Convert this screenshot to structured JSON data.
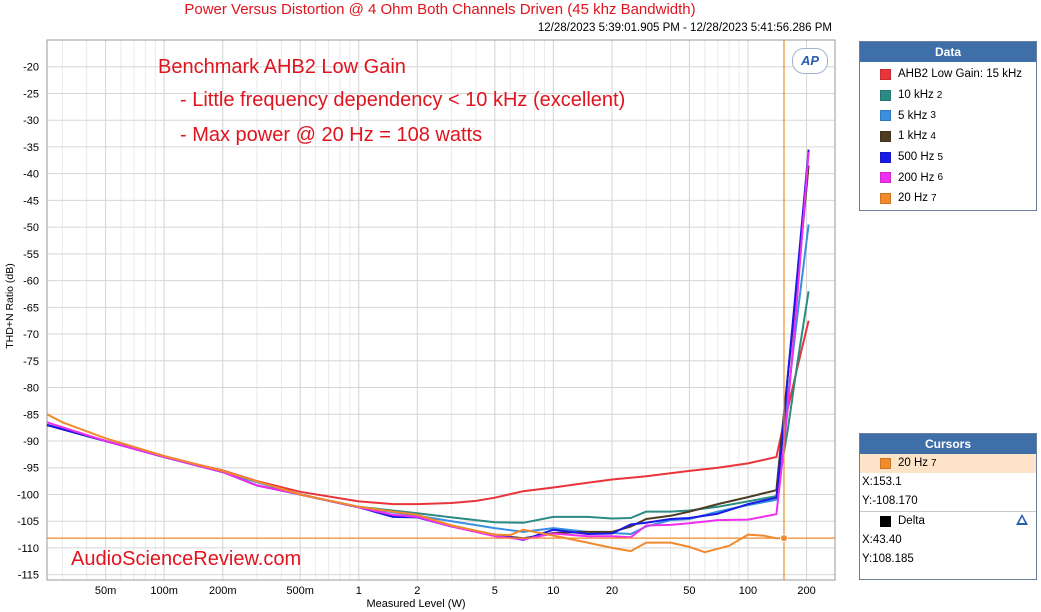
{
  "header": {
    "title": "Power Versus Distortion @ 4 Ohm Both Channels Driven (45 khz Bandwidth)",
    "date_range": "12/28/2023 5:39:01.905 PM - 12/28/2023 5:41:56.286 PM"
  },
  "logo_text": "AP",
  "annotations": {
    "line1": "Benchmark AHB2 Low Gain",
    "line2": "- Little frequency dependency < 10 kHz (excellent)",
    "line3": "- Max power @ 20 Hz = 108 watts"
  },
  "watermark": "AudioScienceReview.com",
  "data_panel": {
    "title": "Data",
    "items": [
      {
        "label": "AHB2 Low Gain: 15 kHz",
        "sub": "",
        "color": "#e8343a"
      },
      {
        "label": "10 kHz",
        "sub": "2",
        "color": "#2a8c82"
      },
      {
        "label": "5 kHz",
        "sub": "3",
        "color": "#3a8fe0"
      },
      {
        "label": "1 kHz",
        "sub": "4",
        "color": "#4d3b22"
      },
      {
        "label": "500 Hz",
        "sub": "5",
        "color": "#1a1ae6"
      },
      {
        "label": "200 Hz",
        "sub": "6",
        "color": "#f030f0"
      },
      {
        "label": "20 Hz",
        "sub": "7",
        "color": "#f08a2c"
      }
    ]
  },
  "cursors_panel": {
    "title": "Cursors",
    "selected": {
      "label": "20 Hz",
      "sub": "7",
      "color": "#f08a2c"
    },
    "x": "X:153.1",
    "y": "Y:-108.170",
    "delta_label": "Delta",
    "delta_x": "X:43.40",
    "delta_y": "Y:108.185"
  },
  "chart_data": {
    "type": "line",
    "title": "Power Versus Distortion @ 4 Ohm Both Channels Driven (45 khz Bandwidth)",
    "xlabel": "Measured Level (W)",
    "ylabel": "THD+N Ratio (dB)",
    "x_scale": "log",
    "xlim": [
      0.025,
      280
    ],
    "ylim": [
      -116,
      -15
    ],
    "x_ticks": [
      {
        "v": 0.05,
        "label": "50m"
      },
      {
        "v": 0.1,
        "label": "100m"
      },
      {
        "v": 0.2,
        "label": "200m"
      },
      {
        "v": 0.5,
        "label": "500m"
      },
      {
        "v": 1,
        "label": "1"
      },
      {
        "v": 2,
        "label": "2"
      },
      {
        "v": 5,
        "label": "5"
      },
      {
        "v": 10,
        "label": "10"
      },
      {
        "v": 20,
        "label": "20"
      },
      {
        "v": 50,
        "label": "50"
      },
      {
        "v": 100,
        "label": "100"
      },
      {
        "v": 200,
        "label": "200"
      }
    ],
    "y_ticks": [
      -20,
      -25,
      -30,
      -35,
      -40,
      -45,
      -50,
      -55,
      -60,
      -65,
      -70,
      -75,
      -80,
      -85,
      -90,
      -95,
      -100,
      -105,
      -110,
      -115
    ],
    "grid": true,
    "legend_position": "right",
    "cursor": {
      "x": 153.1,
      "y": -108.17,
      "color": "#f08a2c"
    },
    "series": [
      {
        "name": "AHB2 Low Gain: 15 kHz",
        "color": "#e8343a",
        "points": [
          [
            0.025,
            -87
          ],
          [
            0.05,
            -90
          ],
          [
            0.1,
            -93
          ],
          [
            0.2,
            -95.5
          ],
          [
            0.3,
            -97.5
          ],
          [
            0.5,
            -99.5
          ],
          [
            1,
            -101.3
          ],
          [
            1.5,
            -101.8
          ],
          [
            2,
            -101.8
          ],
          [
            3,
            -101.6
          ],
          [
            4,
            -101.2
          ],
          [
            5,
            -100.6
          ],
          [
            7,
            -99.4
          ],
          [
            10,
            -98.7
          ],
          [
            15,
            -97.8
          ],
          [
            20,
            -97.2
          ],
          [
            30,
            -96.6
          ],
          [
            50,
            -95.6
          ],
          [
            70,
            -95.0
          ],
          [
            100,
            -94.2
          ],
          [
            140,
            -93.0
          ],
          [
            150,
            -88
          ],
          [
            160,
            -84
          ],
          [
            180,
            -76
          ],
          [
            205,
            -67.5
          ]
        ]
      },
      {
        "name": "10 kHz",
        "color": "#2a8c82",
        "points": [
          [
            0.025,
            -87
          ],
          [
            0.05,
            -90
          ],
          [
            0.1,
            -93
          ],
          [
            0.2,
            -95.8
          ],
          [
            0.5,
            -100
          ],
          [
            1,
            -102.3
          ],
          [
            2,
            -103.5
          ],
          [
            3,
            -104.3
          ],
          [
            5,
            -105.2
          ],
          [
            7,
            -105.3
          ],
          [
            10,
            -104.2
          ],
          [
            15,
            -104.2
          ],
          [
            20,
            -104.5
          ],
          [
            25,
            -104.4
          ],
          [
            30,
            -103.2
          ],
          [
            40,
            -103.2
          ],
          [
            50,
            -103.0
          ],
          [
            70,
            -102.3
          ],
          [
            100,
            -101.3
          ],
          [
            140,
            -100.3
          ],
          [
            150,
            -94
          ],
          [
            160,
            -88
          ],
          [
            180,
            -75
          ],
          [
            205,
            -62
          ]
        ]
      },
      {
        "name": "5 kHz",
        "color": "#3a8fe0",
        "points": [
          [
            0.025,
            -87
          ],
          [
            0.05,
            -90
          ],
          [
            0.1,
            -93
          ],
          [
            0.2,
            -95.8
          ],
          [
            0.5,
            -100
          ],
          [
            1,
            -102.4
          ],
          [
            2,
            -104
          ],
          [
            3,
            -105
          ],
          [
            5,
            -106.3
          ],
          [
            7,
            -107
          ],
          [
            10,
            -106.3
          ],
          [
            15,
            -107
          ],
          [
            20,
            -107.2
          ],
          [
            25,
            -107.4
          ],
          [
            30,
            -106
          ],
          [
            40,
            -104.8
          ],
          [
            50,
            -104.6
          ],
          [
            70,
            -103.2
          ],
          [
            100,
            -102
          ],
          [
            140,
            -101
          ],
          [
            150,
            -90
          ],
          [
            160,
            -82
          ],
          [
            180,
            -66
          ],
          [
            205,
            -49.5
          ]
        ]
      },
      {
        "name": "1 kHz",
        "color": "#4d3b22",
        "points": [
          [
            0.025,
            -87
          ],
          [
            0.05,
            -90
          ],
          [
            0.1,
            -93
          ],
          [
            0.2,
            -95.8
          ],
          [
            0.3,
            -98.3
          ],
          [
            0.5,
            -100
          ],
          [
            1,
            -102.4
          ],
          [
            1.5,
            -104
          ],
          [
            2,
            -104.2
          ],
          [
            3,
            -105.8
          ],
          [
            5,
            -107.6
          ],
          [
            7,
            -108.2
          ],
          [
            10,
            -107.2
          ],
          [
            15,
            -107
          ],
          [
            20,
            -107
          ],
          [
            25,
            -106
          ],
          [
            30,
            -104.6
          ],
          [
            40,
            -104
          ],
          [
            50,
            -103.2
          ],
          [
            70,
            -101.8
          ],
          [
            100,
            -100.5
          ],
          [
            140,
            -99.2
          ],
          [
            150,
            -88
          ],
          [
            160,
            -78
          ],
          [
            180,
            -60
          ],
          [
            205,
            -38.5
          ]
        ]
      },
      {
        "name": "500 Hz",
        "color": "#1a1ae6",
        "points": [
          [
            0.025,
            -87
          ],
          [
            0.05,
            -90
          ],
          [
            0.1,
            -93
          ],
          [
            0.2,
            -95.8
          ],
          [
            0.3,
            -98.3
          ],
          [
            0.5,
            -100
          ],
          [
            1,
            -102.4
          ],
          [
            1.5,
            -104.2
          ],
          [
            2,
            -104.3
          ],
          [
            3,
            -106
          ],
          [
            5,
            -107.5
          ],
          [
            7,
            -108.5
          ],
          [
            10,
            -106.6
          ],
          [
            15,
            -107.4
          ],
          [
            20,
            -107.3
          ],
          [
            25,
            -105.6
          ],
          [
            30,
            -105.3
          ],
          [
            40,
            -104.6
          ],
          [
            50,
            -104.4
          ],
          [
            70,
            -103.6
          ],
          [
            100,
            -101.8
          ],
          [
            140,
            -100.6
          ],
          [
            150,
            -90
          ],
          [
            160,
            -78
          ],
          [
            180,
            -58
          ],
          [
            205,
            -35.5
          ]
        ]
      },
      {
        "name": "200 Hz",
        "color": "#f030f0",
        "points": [
          [
            0.025,
            -86.5
          ],
          [
            0.05,
            -90
          ],
          [
            0.1,
            -93
          ],
          [
            0.2,
            -95.8
          ],
          [
            0.3,
            -98.3
          ],
          [
            0.5,
            -100
          ],
          [
            1,
            -102.4
          ],
          [
            1.5,
            -103.8
          ],
          [
            2,
            -104.2
          ],
          [
            3,
            -106
          ],
          [
            5,
            -107.8
          ],
          [
            7,
            -108.4
          ],
          [
            10,
            -107.3
          ],
          [
            15,
            -107.8
          ],
          [
            20,
            -107.8
          ],
          [
            25,
            -108
          ],
          [
            30,
            -105.8
          ],
          [
            40,
            -105.7
          ],
          [
            50,
            -105.4
          ],
          [
            70,
            -104.8
          ],
          [
            100,
            -104.7
          ],
          [
            140,
            -103.7
          ],
          [
            150,
            -94
          ],
          [
            160,
            -84
          ],
          [
            180,
            -62
          ],
          [
            205,
            -36
          ]
        ]
      },
      {
        "name": "20 Hz",
        "color": "#f08a2c",
        "points": [
          [
            0.025,
            -85
          ],
          [
            0.03,
            -86.5
          ],
          [
            0.05,
            -89.5
          ],
          [
            0.1,
            -92.8
          ],
          [
            0.2,
            -95.6
          ],
          [
            0.5,
            -100
          ],
          [
            1,
            -102.3
          ],
          [
            1.5,
            -103.2
          ],
          [
            2,
            -103.8
          ],
          [
            3,
            -105.8
          ],
          [
            5,
            -107.5
          ],
          [
            6,
            -107.6
          ],
          [
            7,
            -106.6
          ],
          [
            10,
            -107.7
          ],
          [
            15,
            -109
          ],
          [
            20,
            -110
          ],
          [
            25,
            -110.6
          ],
          [
            30,
            -109
          ],
          [
            40,
            -109
          ],
          [
            50,
            -109.8
          ],
          [
            60,
            -110.8
          ],
          [
            80,
            -109.6
          ],
          [
            100,
            -107.5
          ],
          [
            120,
            -107.7
          ],
          [
            140,
            -108.2
          ],
          [
            153.1,
            -108.17
          ]
        ]
      }
    ]
  }
}
